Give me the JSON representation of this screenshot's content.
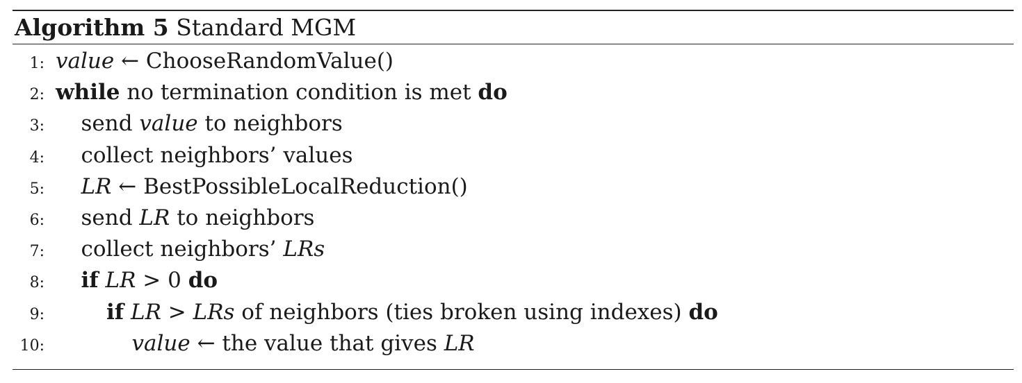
{
  "caption": {
    "label": "Algorithm 5",
    "title": "Standard MGM"
  },
  "lines": [
    {
      "num": "1:",
      "indent": 0,
      "segments": [
        {
          "t": "value",
          "s": "it"
        },
        {
          "t": " ← ChooseRandomValue()",
          "s": ""
        }
      ]
    },
    {
      "num": "2:",
      "indent": 0,
      "segments": [
        {
          "t": "while",
          "s": "kw"
        },
        {
          "t": " no termination condition is met ",
          "s": ""
        },
        {
          "t": "do",
          "s": "kw"
        }
      ]
    },
    {
      "num": "3:",
      "indent": 1,
      "segments": [
        {
          "t": "send ",
          "s": ""
        },
        {
          "t": "value",
          "s": "it"
        },
        {
          "t": " to neighbors",
          "s": ""
        }
      ]
    },
    {
      "num": "4:",
      "indent": 1,
      "segments": [
        {
          "t": "collect neighbors’ values",
          "s": ""
        }
      ]
    },
    {
      "num": "5:",
      "indent": 1,
      "segments": [
        {
          "t": "LR",
          "s": "it"
        },
        {
          "t": " ← BestPossibleLocalReduction()",
          "s": ""
        }
      ]
    },
    {
      "num": "6:",
      "indent": 1,
      "segments": [
        {
          "t": "send ",
          "s": ""
        },
        {
          "t": "LR",
          "s": "it"
        },
        {
          "t": " to neighbors",
          "s": ""
        }
      ]
    },
    {
      "num": "7:",
      "indent": 1,
      "segments": [
        {
          "t": "collect neighbors’ ",
          "s": ""
        },
        {
          "t": "LRs",
          "s": "it"
        }
      ]
    },
    {
      "num": "8:",
      "indent": 1,
      "segments": [
        {
          "t": "if",
          "s": "kw"
        },
        {
          "t": " ",
          "s": ""
        },
        {
          "t": "LR",
          "s": "it"
        },
        {
          "t": " > 0 ",
          "s": ""
        },
        {
          "t": "do",
          "s": "kw"
        }
      ]
    },
    {
      "num": "9:",
      "indent": 2,
      "segments": [
        {
          "t": "if",
          "s": "kw"
        },
        {
          "t": " ",
          "s": ""
        },
        {
          "t": "LR",
          "s": "it"
        },
        {
          "t": " > ",
          "s": ""
        },
        {
          "t": "LRs",
          "s": "it"
        },
        {
          "t": " of neighbors (ties broken using indexes) ",
          "s": ""
        },
        {
          "t": "do",
          "s": "kw"
        }
      ]
    },
    {
      "num": "10:",
      "indent": 3,
      "segments": [
        {
          "t": "value",
          "s": "it"
        },
        {
          "t": " ← the value that gives ",
          "s": ""
        },
        {
          "t": "LR",
          "s": "it"
        }
      ]
    }
  ]
}
